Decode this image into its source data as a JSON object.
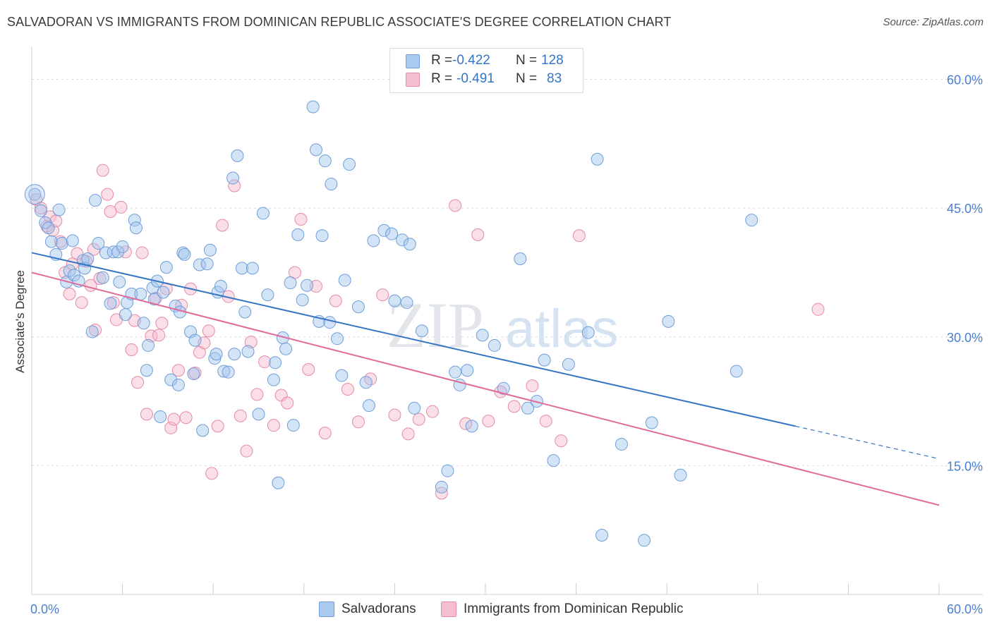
{
  "title": "SALVADORAN VS IMMIGRANTS FROM DOMINICAN REPUBLIC ASSOCIATE'S DEGREE CORRELATION CHART",
  "source": "Source: ZipAtlas.com",
  "watermark": {
    "zip": "ZIP",
    "atlas": "atlas"
  },
  "legend": {
    "r_label": "R =",
    "n_label": "N =",
    "rows": [
      {
        "r": "-0.422",
        "n": "128",
        "swatch": "#aac9ef",
        "edge": "#6f9ed8"
      },
      {
        "r": "-0.491",
        "n": "83",
        "swatch": "#f5bfd0",
        "edge": "#e58aa9"
      }
    ]
  },
  "bottom_legend": [
    {
      "label": "Salvadorans",
      "swatch": "#aac9ef",
      "edge": "#6f9ed8"
    },
    {
      "label": "Immigrants from Dominican Republic",
      "swatch": "#f5bfd0",
      "edge": "#e58aa9"
    }
  ],
  "chart_data": {
    "type": "scatter",
    "title": "SALVADORAN VS IMMIGRANTS FROM DOMINICAN REPUBLIC ASSOCIATE'S DEGREE CORRELATION CHART",
    "xlabel": "",
    "ylabel": "Associate's Degree",
    "xlim": [
      0,
      60
    ],
    "ylim": [
      0,
      63
    ],
    "x_tick_labels": [
      "0.0%",
      "60.0%"
    ],
    "y_ticks": [
      15,
      30,
      45,
      60
    ],
    "y_tick_labels": [
      "15.0%",
      "30.0%",
      "45.0%",
      "60.0%"
    ],
    "grid": true,
    "colors": {
      "blue": "#3575c6",
      "pink": "#e06a98",
      "blue_fill": "#aac9ef",
      "pink_fill": "#f5bfd0",
      "tick_text": "#4a7fd0"
    },
    "series": [
      {
        "name": "Salvadorans",
        "trend": {
          "x": [
            0,
            50.5
          ],
          "y": [
            39.8,
            19.6
          ],
          "dashed_to_x": 60,
          "dashed_to_y": 15.8
        },
        "points": [
          [
            0.2,
            46.6
          ],
          [
            0.6,
            44.7
          ],
          [
            0.9,
            43.3
          ],
          [
            1.1,
            42.7
          ],
          [
            1.3,
            41.1
          ],
          [
            1.6,
            39.6
          ],
          [
            1.8,
            44.8
          ],
          [
            2.0,
            40.9
          ],
          [
            2.3,
            36.4
          ],
          [
            2.5,
            37.7
          ],
          [
            2.7,
            41.2
          ],
          [
            2.8,
            37.2
          ],
          [
            3.1,
            36.5
          ],
          [
            3.4,
            38.9
          ],
          [
            3.5,
            38.0
          ],
          [
            3.7,
            39.1
          ],
          [
            4.0,
            30.6
          ],
          [
            4.2,
            45.9
          ],
          [
            4.4,
            40.9
          ],
          [
            4.7,
            36.9
          ],
          [
            4.9,
            39.8
          ],
          [
            5.2,
            33.9
          ],
          [
            5.4,
            39.9
          ],
          [
            5.7,
            39.9
          ],
          [
            5.8,
            36.4
          ],
          [
            6.0,
            40.5
          ],
          [
            6.2,
            32.6
          ],
          [
            6.3,
            34.0
          ],
          [
            6.6,
            35.0
          ],
          [
            6.8,
            43.6
          ],
          [
            6.9,
            42.7
          ],
          [
            7.2,
            35.0
          ],
          [
            7.4,
            31.6
          ],
          [
            7.6,
            26.1
          ],
          [
            7.7,
            29.0
          ],
          [
            8.0,
            35.7
          ],
          [
            8.1,
            34.4
          ],
          [
            8.3,
            36.5
          ],
          [
            8.5,
            20.7
          ],
          [
            8.7,
            35.2
          ],
          [
            8.9,
            38.1
          ],
          [
            9.2,
            25.0
          ],
          [
            9.5,
            33.6
          ],
          [
            9.7,
            24.4
          ],
          [
            9.8,
            32.9
          ],
          [
            10.0,
            39.8
          ],
          [
            10.1,
            39.6
          ],
          [
            10.5,
            30.6
          ],
          [
            10.7,
            25.7
          ],
          [
            10.8,
            29.6
          ],
          [
            11.1,
            38.4
          ],
          [
            11.3,
            19.1
          ],
          [
            11.6,
            38.5
          ],
          [
            11.8,
            40.1
          ],
          [
            12.1,
            27.5
          ],
          [
            12.2,
            28.0
          ],
          [
            12.3,
            35.2
          ],
          [
            12.5,
            35.9
          ],
          [
            12.7,
            26.0
          ],
          [
            13.0,
            25.9
          ],
          [
            13.3,
            48.5
          ],
          [
            13.4,
            28.0
          ],
          [
            13.6,
            51.1
          ],
          [
            13.9,
            38.0
          ],
          [
            14.1,
            32.9
          ],
          [
            14.3,
            28.3
          ],
          [
            14.6,
            38.0
          ],
          [
            15.0,
            21.0
          ],
          [
            15.3,
            44.4
          ],
          [
            15.6,
            34.9
          ],
          [
            16.0,
            25.0
          ],
          [
            16.1,
            27.0
          ],
          [
            16.3,
            13.0
          ],
          [
            16.6,
            29.9
          ],
          [
            16.8,
            28.6
          ],
          [
            17.1,
            36.3
          ],
          [
            17.3,
            19.7
          ],
          [
            17.6,
            41.9
          ],
          [
            17.9,
            34.3
          ],
          [
            18.2,
            36.0
          ],
          [
            18.6,
            56.8
          ],
          [
            18.8,
            51.8
          ],
          [
            19.0,
            31.8
          ],
          [
            19.2,
            41.8
          ],
          [
            19.4,
            50.5
          ],
          [
            19.7,
            31.7
          ],
          [
            19.8,
            47.8
          ],
          [
            20.2,
            29.8
          ],
          [
            20.5,
            25.5
          ],
          [
            20.7,
            36.6
          ],
          [
            21.0,
            50.1
          ],
          [
            21.6,
            33.5
          ],
          [
            22.1,
            24.7
          ],
          [
            22.3,
            22.0
          ],
          [
            22.6,
            41.2
          ],
          [
            23.3,
            42.4
          ],
          [
            23.8,
            42.0
          ],
          [
            24.0,
            34.2
          ],
          [
            24.5,
            41.3
          ],
          [
            24.8,
            34.0
          ],
          [
            25.0,
            40.8
          ],
          [
            25.3,
            21.7
          ],
          [
            25.8,
            30.7
          ],
          [
            27.1,
            12.5
          ],
          [
            27.5,
            14.4
          ],
          [
            28.0,
            25.9
          ],
          [
            28.3,
            24.4
          ],
          [
            28.8,
            26.1
          ],
          [
            29.1,
            19.6
          ],
          [
            29.8,
            30.2
          ],
          [
            30.6,
            29.0
          ],
          [
            31.2,
            24.0
          ],
          [
            32.3,
            39.1
          ],
          [
            32.8,
            21.7
          ],
          [
            33.4,
            22.5
          ],
          [
            33.9,
            27.3
          ],
          [
            34.5,
            15.6
          ],
          [
            35.5,
            26.8
          ],
          [
            36.8,
            30.5
          ],
          [
            37.4,
            50.7
          ],
          [
            37.7,
            6.9
          ],
          [
            39.0,
            17.5
          ],
          [
            40.5,
            6.3
          ],
          [
            41.0,
            20.0
          ],
          [
            42.1,
            31.8
          ],
          [
            42.9,
            13.9
          ],
          [
            47.6,
            43.6
          ],
          [
            46.6,
            26.0
          ]
        ]
      },
      {
        "name": "Immigrants from Dominican Republic",
        "trend": {
          "x": [
            0,
            60
          ],
          "y": [
            37.5,
            10.4
          ]
        },
        "points": [
          [
            0.3,
            46.0
          ],
          [
            0.6,
            45.0
          ],
          [
            1.0,
            42.9
          ],
          [
            1.2,
            44.0
          ],
          [
            1.4,
            42.4
          ],
          [
            1.6,
            43.5
          ],
          [
            1.9,
            41.1
          ],
          [
            2.2,
            37.5
          ],
          [
            2.5,
            35.0
          ],
          [
            2.7,
            38.5
          ],
          [
            3.0,
            39.7
          ],
          [
            3.3,
            34.0
          ],
          [
            3.6,
            38.8
          ],
          [
            3.9,
            36.0
          ],
          [
            4.1,
            40.2
          ],
          [
            4.2,
            30.8
          ],
          [
            4.5,
            36.8
          ],
          [
            4.7,
            49.4
          ],
          [
            5.0,
            46.6
          ],
          [
            5.2,
            44.6
          ],
          [
            5.4,
            34.0
          ],
          [
            5.6,
            32.0
          ],
          [
            5.9,
            45.1
          ],
          [
            6.2,
            39.9
          ],
          [
            6.6,
            28.5
          ],
          [
            6.8,
            31.9
          ],
          [
            7.0,
            24.7
          ],
          [
            7.3,
            39.8
          ],
          [
            7.6,
            21.0
          ],
          [
            7.9,
            30.1
          ],
          [
            8.2,
            34.5
          ],
          [
            8.4,
            30.2
          ],
          [
            8.6,
            31.6
          ],
          [
            8.9,
            35.6
          ],
          [
            9.2,
            19.4
          ],
          [
            9.4,
            20.4
          ],
          [
            9.7,
            26.1
          ],
          [
            9.9,
            33.7
          ],
          [
            10.2,
            20.6
          ],
          [
            10.5,
            35.6
          ],
          [
            10.8,
            25.8
          ],
          [
            11.1,
            28.2
          ],
          [
            11.4,
            29.3
          ],
          [
            11.7,
            30.7
          ],
          [
            11.9,
            14.1
          ],
          [
            12.3,
            19.6
          ],
          [
            12.6,
            43.0
          ],
          [
            13.0,
            34.7
          ],
          [
            13.4,
            47.6
          ],
          [
            13.8,
            20.8
          ],
          [
            14.2,
            16.7
          ],
          [
            14.5,
            29.4
          ],
          [
            14.9,
            23.3
          ],
          [
            15.4,
            27.1
          ],
          [
            16.0,
            19.7
          ],
          [
            16.5,
            23.2
          ],
          [
            16.9,
            22.3
          ],
          [
            17.4,
            37.5
          ],
          [
            17.8,
            43.7
          ],
          [
            18.3,
            26.2
          ],
          [
            18.8,
            35.9
          ],
          [
            19.4,
            18.8
          ],
          [
            20.1,
            34.2
          ],
          [
            20.9,
            23.9
          ],
          [
            21.6,
            20.1
          ],
          [
            22.4,
            25.1
          ],
          [
            23.2,
            34.9
          ],
          [
            24.0,
            20.9
          ],
          [
            24.9,
            18.7
          ],
          [
            25.6,
            20.4
          ],
          [
            26.5,
            21.3
          ],
          [
            27.1,
            11.8
          ],
          [
            28.0,
            45.3
          ],
          [
            28.7,
            19.9
          ],
          [
            29.5,
            41.9
          ],
          [
            30.2,
            20.2
          ],
          [
            31.0,
            23.6
          ],
          [
            31.9,
            21.9
          ],
          [
            33.1,
            24.3
          ],
          [
            34.0,
            20.2
          ],
          [
            35.0,
            17.9
          ],
          [
            36.2,
            41.8
          ],
          [
            52.0,
            33.2
          ]
        ]
      }
    ]
  }
}
